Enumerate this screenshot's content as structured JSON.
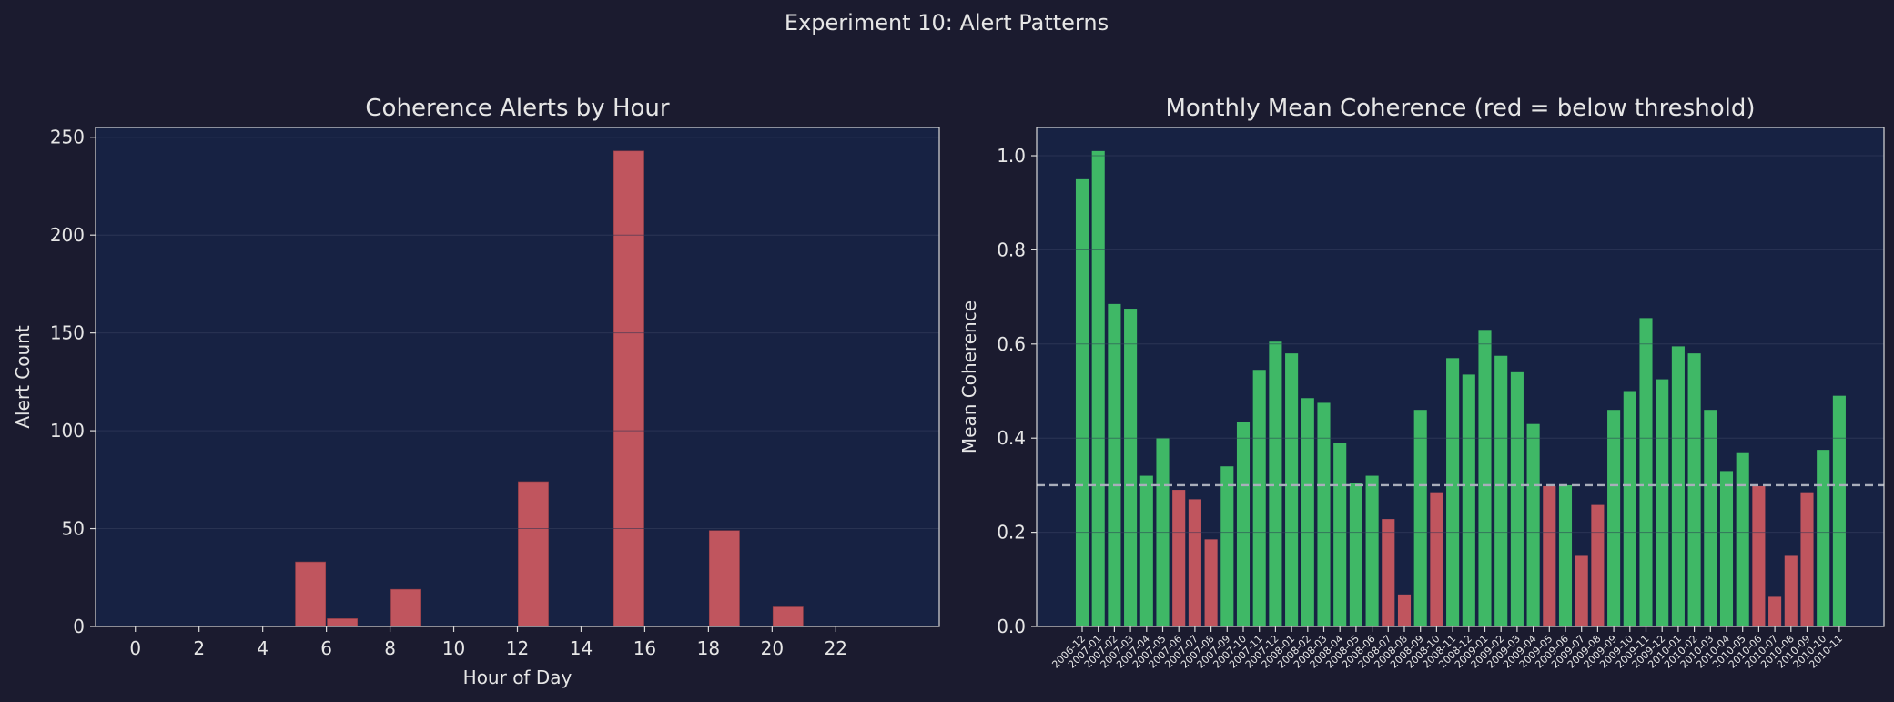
{
  "figure": {
    "suptitle": "Experiment 10: Alert Patterns",
    "colors": {
      "background": "#1b1b2f",
      "axes_bg": "#172243",
      "alert_red": "#c0555e",
      "ok_green": "#3fb866",
      "text": "#e6e6e6",
      "threshold_line": "#a9aebb"
    }
  },
  "chart_data": [
    {
      "type": "bar",
      "title": "Coherence Alerts by Hour",
      "xlabel": "Hour of Day",
      "ylabel": "Alert Count",
      "xlim": [
        -1.25,
        25.25
      ],
      "ylim": [
        0,
        255
      ],
      "xticks": [
        0,
        2,
        4,
        6,
        8,
        10,
        12,
        14,
        16,
        18,
        20,
        22
      ],
      "yticks": [
        0,
        50,
        100,
        150,
        200,
        250
      ],
      "grid": true,
      "x": [
        5.5,
        6.5,
        8.5,
        12.5,
        15.5,
        18.5,
        20.5
      ],
      "values": [
        33,
        4,
        19,
        74,
        243,
        49,
        10
      ],
      "bar_width_hours": 0.95,
      "color": "#c0555e"
    },
    {
      "type": "bar",
      "title": "Monthly Mean Coherence (red = below threshold)",
      "xlabel": "",
      "ylabel": "Mean Coherence",
      "ylim": [
        0,
        1.06
      ],
      "yticks": [
        0.0,
        0.2,
        0.4,
        0.6,
        0.8,
        1.0
      ],
      "threshold": 0.3,
      "grid": true,
      "categories": [
        "2006-12",
        "2007-01",
        "2007-02",
        "2007-03",
        "2007-04",
        "2007-05",
        "2007-06",
        "2007-07",
        "2007-08",
        "2007-09",
        "2007-10",
        "2007-11",
        "2007-12",
        "2008-01",
        "2008-02",
        "2008-03",
        "2008-04",
        "2008-05",
        "2008-06",
        "2008-07",
        "2008-08",
        "2008-09",
        "2008-10",
        "2008-11",
        "2008-12",
        "2009-01",
        "2009-02",
        "2009-03",
        "2009-04",
        "2009-05",
        "2009-06",
        "2009-07",
        "2009-08",
        "2009-09",
        "2009-10",
        "2009-11",
        "2009-12",
        "2010-01",
        "2010-02",
        "2010-03",
        "2010-04",
        "2010-05",
        "2010-06",
        "2010-07",
        "2010-08",
        "2010-09",
        "2010-10",
        "2010-11"
      ],
      "values": [
        0.95,
        1.01,
        0.685,
        0.675,
        0.32,
        0.4,
        0.29,
        0.27,
        0.185,
        0.34,
        0.435,
        0.545,
        0.605,
        0.58,
        0.485,
        0.475,
        0.39,
        0.305,
        0.32,
        0.228,
        0.068,
        0.46,
        0.285,
        0.57,
        0.535,
        0.63,
        0.575,
        0.54,
        0.43,
        0.298,
        0.3,
        0.15,
        0.258,
        0.46,
        0.5,
        0.655,
        0.525,
        0.595,
        0.58,
        0.46,
        0.33,
        0.37,
        0.298,
        0.063,
        0.15,
        0.285,
        0.375,
        0.49
      ],
      "below_color": "#c0555e",
      "above_color": "#3fb866"
    }
  ]
}
